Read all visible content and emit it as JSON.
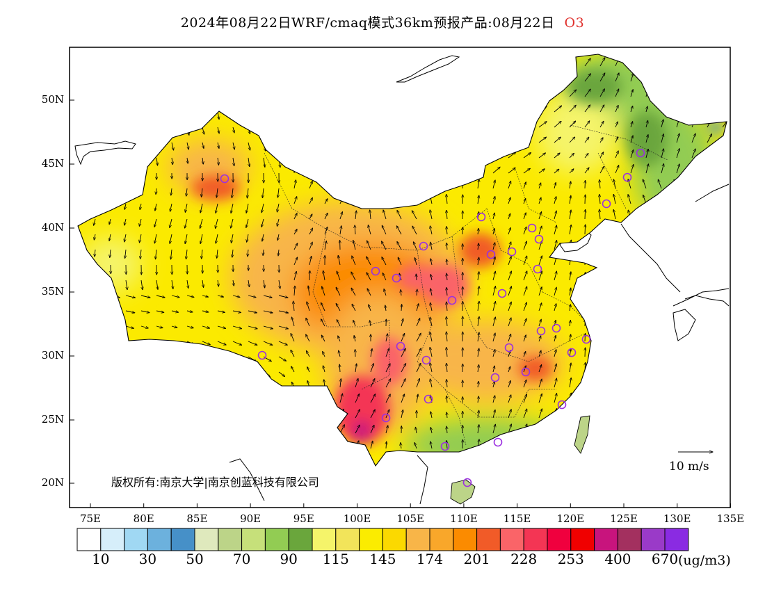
{
  "title": {
    "main": "2024年08月22日WRF/cmaq模式36km预报产品:08月22日",
    "species": "O3"
  },
  "map": {
    "lat_labels": [
      "50N",
      "45N",
      "40N",
      "35N",
      "30N",
      "25N",
      "20N"
    ],
    "lon_labels": [
      "75E",
      "80E",
      "85E",
      "90E",
      "95E",
      "100E",
      "105E",
      "110E",
      "115E",
      "120E",
      "125E",
      "130E",
      "135E"
    ]
  },
  "legend": {
    "labels": [
      "10",
      "30",
      "50",
      "70",
      "90",
      "115",
      "145",
      "174",
      "201",
      "228",
      "253",
      "400",
      "670"
    ],
    "units": "(ug/m3)",
    "colors": [
      "#ffffff",
      "#d6eefa",
      "#a0d8f3",
      "#6cb1dd",
      "#4690c8",
      "#dfe9bd",
      "#bcd488",
      "#c6e07a",
      "#92cc53",
      "#6aa63c",
      "#f5f46a",
      "#f2e45a",
      "#fbec00",
      "#fbd900",
      "#f8b548",
      "#f9a72a",
      "#fb8b00",
      "#f15b28",
      "#fa6468",
      "#f43554",
      "#f0003e",
      "#f00000",
      "#c8147d",
      "#a3305f",
      "#9a3ac8",
      "#8a2be2"
    ]
  },
  "wind_scale_label": "10 m/s",
  "copyright": "版权所有:南京大学|南京创蓝科技有限公司",
  "colors": {
    "station": "#9b30e0",
    "accent": "#e0302c"
  }
}
